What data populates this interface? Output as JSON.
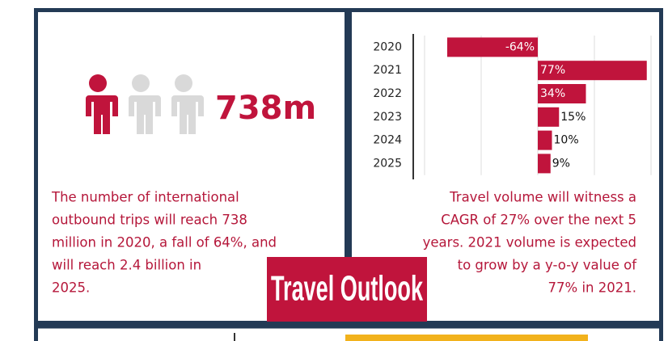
{
  "stat": "738m",
  "left_text_lines": [
    "The number of international",
    "outbound trips will reach 738",
    "million in 2020, a fall of 64%, and",
    "will reach 2.4 billion in",
    "2025."
  ],
  "right_text_lines": [
    "Travel volume will witness a",
    "CAGR of 27% over the next 5",
    "years. 2021 volume is expected",
    "to grow by a y-o-y value of",
    "77% in 2021."
  ],
  "banner": "Travel Outlook",
  "chart_data": {
    "type": "bar",
    "orientation": "horizontal",
    "categories": [
      "2020",
      "2021",
      "2022",
      "2023",
      "2024",
      "2025"
    ],
    "values": [
      -64,
      77,
      34,
      15,
      10,
      9
    ],
    "value_labels": [
      "-64%",
      "77%",
      "34%",
      "15%",
      "10%",
      "9%"
    ],
    "color": "#c0143c",
    "xlim": [
      -80,
      80
    ],
    "xticks": [
      -80,
      -40,
      0,
      40,
      80
    ],
    "grid": true
  }
}
